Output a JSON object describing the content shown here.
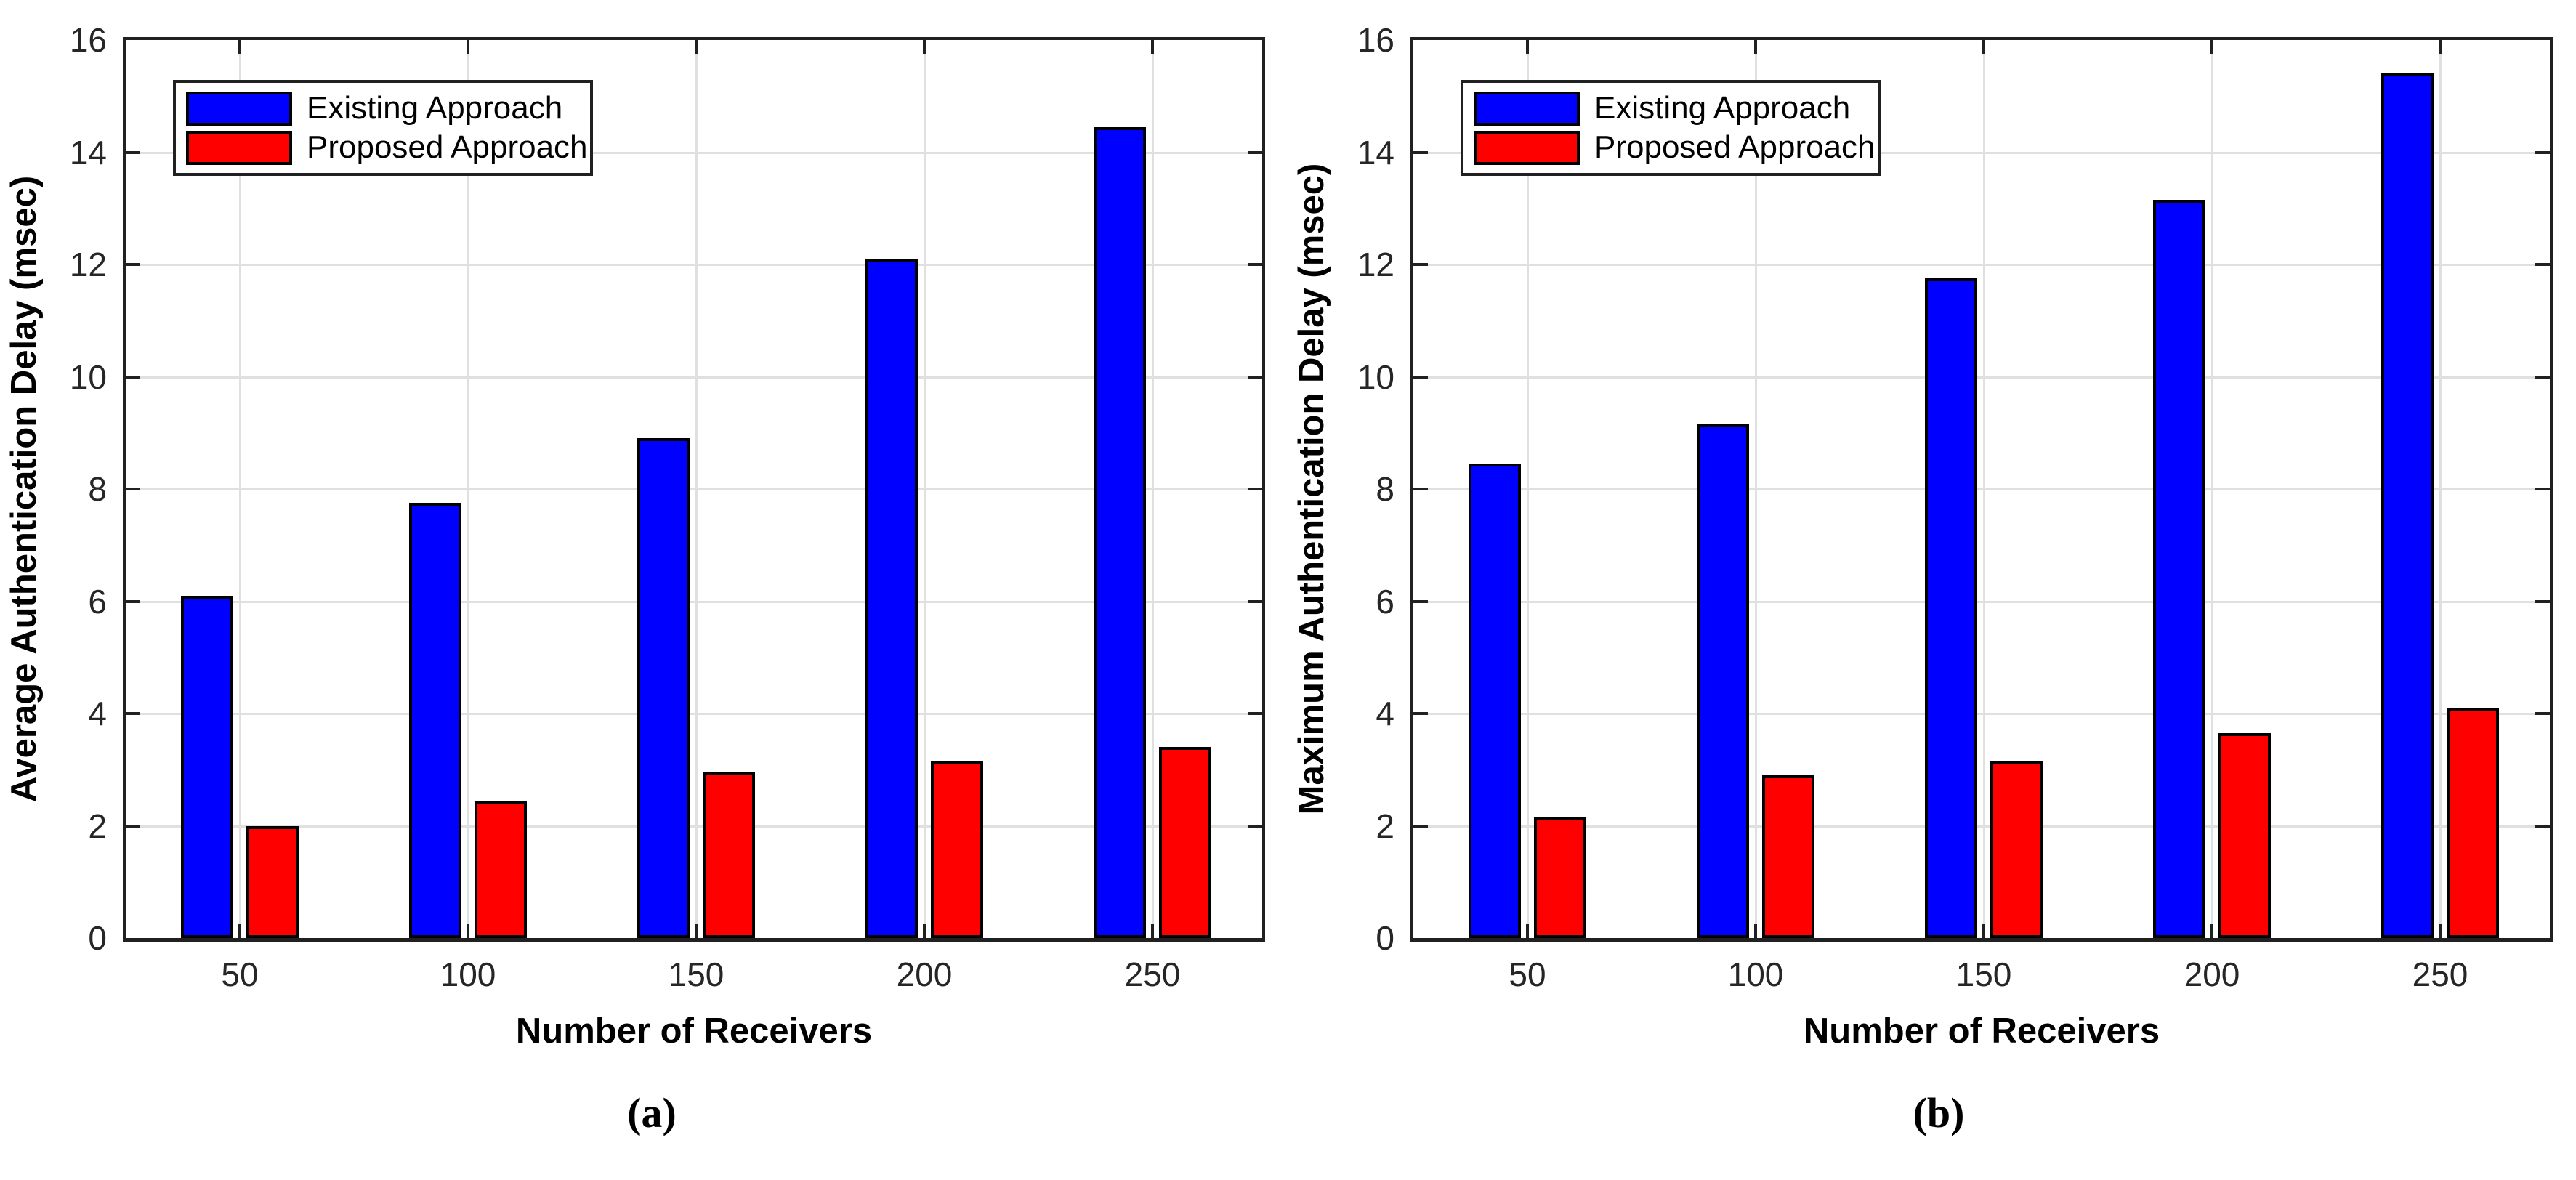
{
  "figure": {
    "caption_a": "(a)",
    "caption_b": "(b)"
  },
  "chart_data": [
    {
      "type": "bar",
      "panel": "a",
      "caption": "(a)",
      "xlabel": "Number of Receivers",
      "ylabel": "Average Authentication Delay (msec)",
      "categories": [
        "50",
        "100",
        "150",
        "200",
        "250"
      ],
      "series": [
        {
          "name": "Existing Approach",
          "color": "#0000ff",
          "values": [
            6.1,
            7.75,
            8.9,
            12.1,
            14.45
          ]
        },
        {
          "name": "Proposed Approach",
          "color": "#ff0000",
          "values": [
            2.0,
            2.45,
            2.95,
            3.15,
            3.4
          ]
        }
      ],
      "ylim": [
        0,
        16
      ],
      "yticks": [
        0,
        2,
        4,
        6,
        8,
        10,
        12,
        14,
        16
      ],
      "grid": true,
      "legend_position": "top-left"
    },
    {
      "type": "bar",
      "panel": "b",
      "caption": "(b)",
      "xlabel": "Number of Receivers",
      "ylabel": "Maximum Authentication Delay (msec)",
      "categories": [
        "50",
        "100",
        "150",
        "200",
        "250"
      ],
      "series": [
        {
          "name": "Existing Approach",
          "color": "#0000ff",
          "values": [
            8.45,
            9.15,
            11.75,
            13.15,
            15.4
          ]
        },
        {
          "name": "Proposed Approach",
          "color": "#ff0000",
          "values": [
            2.15,
            2.9,
            3.15,
            3.65,
            4.1
          ]
        }
      ],
      "ylim": [
        0,
        16
      ],
      "yticks": [
        0,
        2,
        4,
        6,
        8,
        10,
        12,
        14,
        16
      ],
      "grid": true,
      "legend_position": "top-left"
    }
  ]
}
